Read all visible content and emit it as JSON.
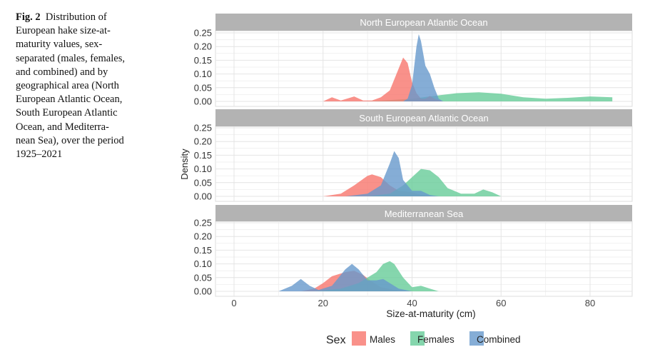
{
  "caption": {
    "label": "Fig. 2",
    "lines": [
      "Distribution of",
      "European hake size-at-",
      "maturity values, sex-",
      "separated (males, females,",
      "and combined) and by",
      "geographical area (North",
      "European Atlantic Ocean,",
      "South European Atlantic",
      "Ocean, and Mediterra-",
      "nean Sea), over the period",
      "1925–2021"
    ]
  },
  "chart_data": {
    "type": "area",
    "subtype": "density-faceted",
    "xlabel": "Size-at-maturity (cm)",
    "ylabel": "Density",
    "xlim": [
      -4,
      89
    ],
    "ylim": [
      0,
      0.26
    ],
    "x_ticks": [
      "0",
      "20",
      "40",
      "60",
      "80"
    ],
    "x_tick_values": [
      0,
      20,
      40,
      60,
      80
    ],
    "y_ticks": [
      "0.00",
      "0.05",
      "0.10",
      "0.15",
      "0.20",
      "0.25"
    ],
    "y_tick_values": [
      0,
      0.05,
      0.1,
      0.15,
      0.2,
      0.25
    ],
    "grid": true,
    "legend": {
      "title": "Sex",
      "position": "bottom",
      "entries": [
        "Males",
        "Females",
        "Combined"
      ]
    },
    "colors": {
      "Males": "#F8766D",
      "Females": "#66CC99",
      "Combined": "#6699CC"
    },
    "facets": [
      {
        "title": "North European Atlantic Ocean",
        "series": [
          {
            "name": "Females",
            "x": [
              30,
              35,
              40,
              45,
              50,
              55,
              60,
              65,
              70,
              75,
              80,
              85
            ],
            "y": [
              0,
              0.005,
              0.01,
              0.02,
              0.03,
              0.033,
              0.028,
              0.015,
              0.01,
              0.013,
              0.018,
              0.015
            ]
          },
          {
            "name": "Males",
            "x": [
              20,
              22,
              24,
              27,
              29,
              31,
              33,
              35,
              37,
              38,
              39,
              40,
              41,
              42,
              43,
              44,
              45,
              47
            ],
            "y": [
              0,
              0.015,
              0.003,
              0.018,
              0.003,
              0.003,
              0.015,
              0.04,
              0.12,
              0.16,
              0.14,
              0.07,
              0.03,
              0.01,
              0.01,
              0.02,
              0.01,
              0
            ]
          },
          {
            "name": "Combined",
            "x": [
              38,
              39,
              40,
              41,
              41.5,
              42,
              43,
              44,
              45,
              46,
              47
            ],
            "y": [
              0,
              0.01,
              0.06,
              0.2,
              0.245,
              0.22,
              0.13,
              0.1,
              0.05,
              0.01,
              0
            ]
          }
        ]
      },
      {
        "title": "South European Atlantic Ocean",
        "series": [
          {
            "name": "Males",
            "x": [
              20,
              24,
              27,
              30,
              31,
              33,
              35,
              37,
              40,
              42,
              45
            ],
            "y": [
              0,
              0.01,
              0.04,
              0.075,
              0.08,
              0.07,
              0.04,
              0.02,
              0.015,
              0.005,
              0
            ]
          },
          {
            "name": "Females",
            "x": [
              30,
              35,
              38,
              40,
              42,
              44,
              46,
              48,
              51,
              54,
              56,
              58,
              60
            ],
            "y": [
              0,
              0.01,
              0.04,
              0.07,
              0.1,
              0.095,
              0.07,
              0.03,
              0.01,
              0.01,
              0.025,
              0.015,
              0
            ]
          },
          {
            "name": "Combined",
            "x": [
              25,
              30,
              33,
              35,
              36,
              37,
              38,
              40,
              42,
              44,
              46
            ],
            "y": [
              0,
              0.01,
              0.04,
              0.12,
              0.165,
              0.14,
              0.06,
              0.02,
              0.02,
              0.005,
              0
            ]
          }
        ]
      },
      {
        "title": "Mediterranean Sea",
        "series": [
          {
            "name": "Males",
            "x": [
              15,
              18,
              20,
              22,
              25,
              27,
              29,
              31,
              33,
              36,
              40
            ],
            "y": [
              0,
              0.01,
              0.03,
              0.055,
              0.07,
              0.075,
              0.06,
              0.035,
              0.015,
              0.005,
              0
            ]
          },
          {
            "name": "Females",
            "x": [
              18,
              24,
              28,
              30,
              32,
              33.5,
              35,
              36,
              38,
              40,
              42,
              44,
              46
            ],
            "y": [
              0,
              0.01,
              0.03,
              0.05,
              0.07,
              0.1,
              0.11,
              0.1,
              0.05,
              0.015,
              0.02,
              0.01,
              0
            ]
          },
          {
            "name": "Combined",
            "x": [
              10,
              13,
              15,
              17,
              19,
              22,
              25,
              26.5,
              28,
              30,
              32,
              33.5,
              35,
              37,
              40
            ],
            "y": [
              0,
              0.02,
              0.045,
              0.02,
              0.005,
              0.02,
              0.08,
              0.1,
              0.08,
              0.04,
              0.04,
              0.045,
              0.03,
              0.01,
              0
            ]
          }
        ]
      }
    ]
  }
}
